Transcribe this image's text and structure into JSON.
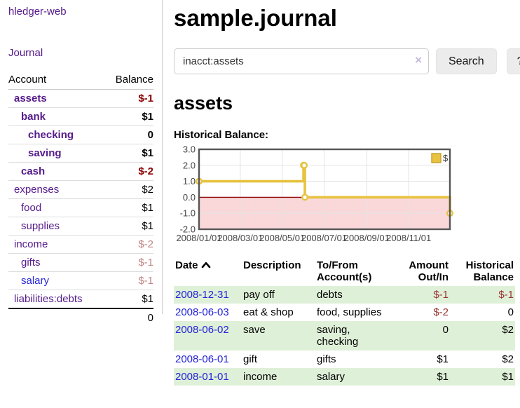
{
  "app": {
    "title": "hledger-web"
  },
  "sidebar": {
    "journal_link": "Journal",
    "accounts_table": {
      "headers": {
        "account": "Account",
        "balance": "Balance"
      },
      "rows": [
        {
          "name": "assets",
          "balance": "$-1",
          "indent": 1,
          "bold": true,
          "name_style": "purple",
          "balance_style": "negative-strong"
        },
        {
          "name": "bank",
          "balance": "$1",
          "indent": 2,
          "bold": true,
          "name_style": "purple",
          "balance_style": "normal"
        },
        {
          "name": "checking",
          "balance": "0",
          "indent": 3,
          "bold": true,
          "name_style": "purple",
          "balance_style": "normal"
        },
        {
          "name": "saving",
          "balance": "$1",
          "indent": 3,
          "bold": true,
          "name_style": "purple",
          "balance_style": "normal"
        },
        {
          "name": "cash",
          "balance": "$-2",
          "indent": 2,
          "bold": true,
          "name_style": "purple",
          "balance_style": "negative-strong"
        },
        {
          "name": "expenses",
          "balance": "$2",
          "indent": 1,
          "bold": false,
          "name_style": "purple",
          "balance_style": "normal"
        },
        {
          "name": "food",
          "balance": "$1",
          "indent": 2,
          "bold": false,
          "name_style": "purple",
          "balance_style": "normal"
        },
        {
          "name": "supplies",
          "balance": "$1",
          "indent": 2,
          "bold": false,
          "name_style": "purple",
          "balance_style": "normal"
        },
        {
          "name": "income",
          "balance": "$-2",
          "indent": 1,
          "bold": false,
          "name_style": "purple",
          "balance_style": "negative-soft"
        },
        {
          "name": "gifts",
          "balance": "$-1",
          "indent": 2,
          "bold": false,
          "name_style": "purple",
          "balance_style": "negative-soft"
        },
        {
          "name": "salary",
          "balance": "$-1",
          "indent": 2,
          "bold": false,
          "name_style": "blue",
          "balance_style": "negative-soft"
        },
        {
          "name": "liabilities:debts",
          "balance": "$1",
          "indent": 1,
          "bold": false,
          "name_style": "purple",
          "balance_style": "normal"
        }
      ],
      "total": "0"
    }
  },
  "main": {
    "title": "sample.journal",
    "search": {
      "value": "inacct:assets",
      "clear_icon": "×",
      "button": "Search",
      "help_button": "?"
    },
    "account_heading": "assets",
    "chart_label": "Historical Balance:"
  },
  "chart_data": {
    "type": "line",
    "style": "step-after",
    "title": "Historical Balance:",
    "series": [
      {
        "name": "$",
        "color": "#E8C240",
        "points": [
          [
            "2008-01-01",
            1
          ],
          [
            "2008-06-01",
            2
          ],
          [
            "2008-06-02",
            2
          ],
          [
            "2008-06-03",
            0
          ],
          [
            "2008-12-31",
            -1
          ]
        ]
      }
    ],
    "x_range": [
      "2008-01-01",
      "2008-12-31"
    ],
    "y_range": [
      -2,
      3
    ],
    "x_ticks": [
      {
        "date": "2008-01-01",
        "label": "2008/01/01"
      },
      {
        "date": "2008-03-01",
        "label": "2008/03/01"
      },
      {
        "date": "2008-05-01",
        "label": "2008/05/01"
      },
      {
        "date": "2008-07-01",
        "label": "2008/07/01"
      },
      {
        "date": "2008-09-01",
        "label": "2008/09/01"
      },
      {
        "date": "2008-11-01",
        "label": "2008/11/01"
      }
    ],
    "y_ticks": [
      {
        "value": 3,
        "label": "3.0"
      },
      {
        "value": 2,
        "label": "2.0"
      },
      {
        "value": 1,
        "label": "1.0"
      },
      {
        "value": 0,
        "label": "0.0"
      },
      {
        "value": -1,
        "label": "-1.0"
      },
      {
        "value": -2,
        "label": "-2.0"
      }
    ],
    "grid": true,
    "legend": {
      "position": "top-right",
      "items": [
        {
          "label": "$",
          "color": "#E8C240"
        }
      ]
    },
    "zero_line_color": "#8B0000",
    "negative_region_color": "#FAD8DA"
  },
  "register_table": {
    "headers": {
      "date": "Date",
      "sort": "ascending",
      "description": "Description",
      "accounts": "To/From Account(s)",
      "amount": "Amount Out/In",
      "balance": "Historical Balance"
    },
    "rows": [
      {
        "date": "2008-12-31",
        "description": "pay off",
        "accounts": "debts",
        "amount": "$-1",
        "amount_negative": true,
        "balance": "$-1",
        "balance_negative": true
      },
      {
        "date": "2008-06-03",
        "description": "eat & shop",
        "accounts": "food, supplies",
        "amount": "$-2",
        "amount_negative": true,
        "balance": "0",
        "balance_negative": false
      },
      {
        "date": "2008-06-02",
        "description": "save",
        "accounts": "saving, checking",
        "amount": "0",
        "amount_negative": false,
        "balance": "$2",
        "balance_negative": false
      },
      {
        "date": "2008-06-01",
        "description": "gift",
        "accounts": "gifts",
        "amount": "$1",
        "amount_negative": false,
        "balance": "$2",
        "balance_negative": false
      },
      {
        "date": "2008-01-01",
        "description": "income",
        "accounts": "salary",
        "amount": "$1",
        "amount_negative": false,
        "balance": "$1",
        "balance_negative": false
      }
    ]
  },
  "colors": {
    "link_purple": "#551A8B",
    "link_blue": "#2323DB",
    "negative_strong": "#8B0000",
    "negative_soft": "#C28585",
    "register_negative": "#993333",
    "row_stripe_green": "#DFF0D8",
    "series_gold": "#E8C240"
  }
}
